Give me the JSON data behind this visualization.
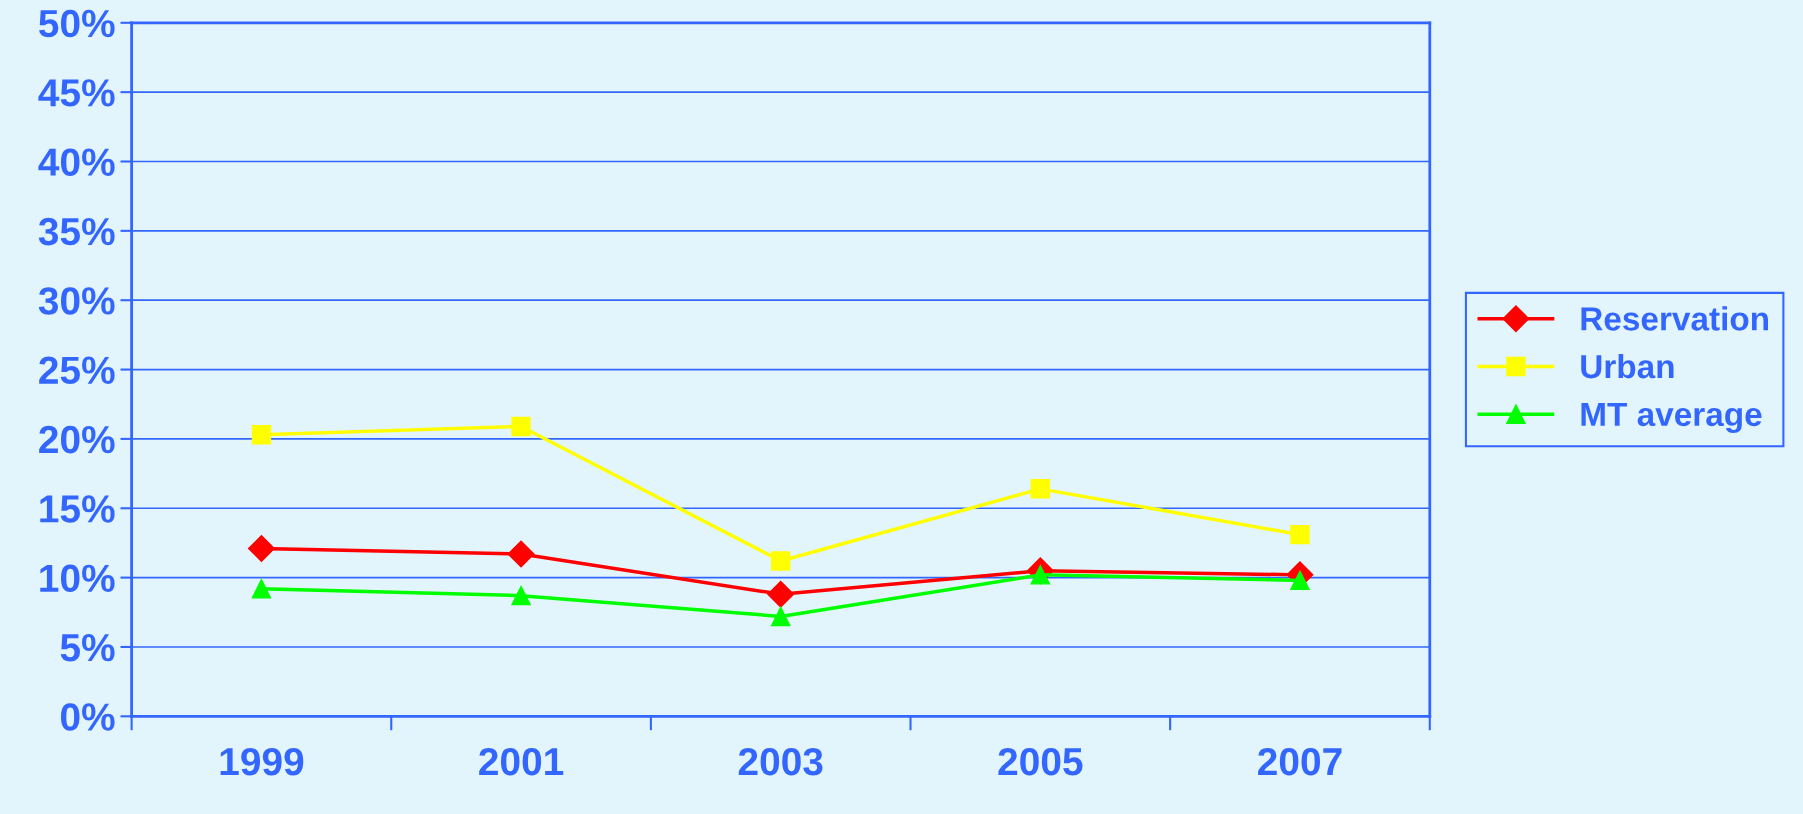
{
  "chart_data": {
    "type": "line",
    "categories": [
      "1999",
      "2001",
      "2003",
      "2005",
      "2007"
    ],
    "series": [
      {
        "name": "Reservation",
        "color": "#ff0000",
        "marker": "diamond",
        "values": [
          12.1,
          11.7,
          8.8,
          10.5,
          10.2
        ]
      },
      {
        "name": "Urban",
        "color": "#ffff00",
        "marker": "square",
        "values": [
          20.3,
          20.9,
          11.2,
          16.4,
          13.1
        ]
      },
      {
        "name": "MT average",
        "color": "#00ff00",
        "marker": "triangle",
        "values": [
          9.2,
          8.7,
          7.2,
          10.2,
          9.8
        ]
      }
    ],
    "ylim": [
      0,
      50
    ],
    "yticks": [
      {
        "value": 0,
        "label": "0%"
      },
      {
        "value": 5,
        "label": "5%"
      },
      {
        "value": 10,
        "label": "10%"
      },
      {
        "value": 15,
        "label": "15%"
      },
      {
        "value": 20,
        "label": "20%"
      },
      {
        "value": 25,
        "label": "25%"
      },
      {
        "value": 30,
        "label": "30%"
      },
      {
        "value": 35,
        "label": "35%"
      },
      {
        "value": 40,
        "label": "40%"
      },
      {
        "value": 45,
        "label": "45%"
      },
      {
        "value": 50,
        "label": "50%"
      }
    ],
    "grid": "y",
    "legend": "right",
    "line_style": "solid"
  }
}
